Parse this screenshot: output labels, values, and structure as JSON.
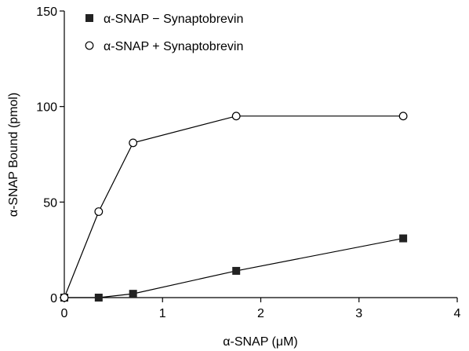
{
  "chart_data": {
    "type": "line",
    "xlabel": "α-SNAP (μM)",
    "ylabel": "α-SNAP Bound (pmol)",
    "xlim": [
      0,
      4
    ],
    "ylim": [
      0,
      150
    ],
    "xticks": [
      0,
      1,
      2,
      3,
      4
    ],
    "yticks": [
      0,
      50,
      100,
      150
    ],
    "xtick_labels": [
      "0",
      "1",
      "2",
      "3",
      "4"
    ],
    "ytick_labels": [
      "0",
      "50",
      "100",
      "150"
    ],
    "grid": false,
    "legend_position": "top-left",
    "series": [
      {
        "name": "α-SNAP − Synaptobrevin",
        "marker": "filled-square",
        "color": "#222222",
        "x": [
          0,
          0.35,
          0.7,
          1.75,
          3.45
        ],
        "y": [
          0,
          0,
          2,
          14,
          31
        ]
      },
      {
        "name": "α-SNAP + Synaptobrevin",
        "marker": "open-circle",
        "color": "#000000",
        "x": [
          0,
          0.35,
          0.7,
          1.75,
          3.45
        ],
        "y": [
          0,
          45,
          81,
          95,
          95
        ]
      }
    ]
  }
}
